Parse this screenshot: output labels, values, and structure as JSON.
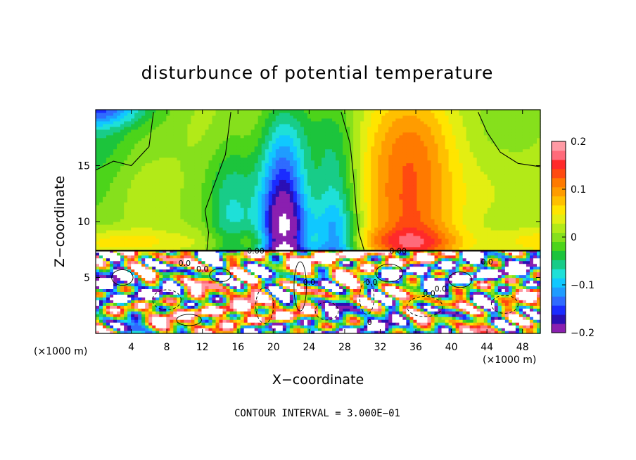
{
  "chart_data": {
    "type": "heatmap",
    "title": "disturbunce of potential temperature",
    "xlabel": "X−coordinate",
    "ylabel": "Z−coordinate",
    "x_unit": "(×1000 m)",
    "x_unit_right": "(×1000 m)",
    "xlim": [
      0,
      50
    ],
    "ylim": [
      0,
      20
    ],
    "xticks": [
      4,
      8,
      12,
      16,
      20,
      24,
      28,
      32,
      36,
      40,
      44,
      48
    ],
    "yticks": [
      5,
      10,
      15
    ],
    "colorbar": {
      "range": [
        -0.2,
        0.2
      ],
      "ticks": [
        {
          "value": 0.2,
          "label": "0.2"
        },
        {
          "value": 0.1,
          "label": "0.1"
        },
        {
          "value": 0,
          "label": "0"
        },
        {
          "value": -0.1,
          "label": "−0.1"
        },
        {
          "value": -0.2,
          "label": "−0.2"
        }
      ],
      "colors": [
        "#8a1fb0",
        "#2a0fb5",
        "#1a2cff",
        "#2f6bff",
        "#1f9cff",
        "#10c8ff",
        "#1ee0d8",
        "#18cc88",
        "#1cc43c",
        "#4cd41a",
        "#86e01c",
        "#b2ea18",
        "#e3ee12",
        "#ffe500",
        "#ffc000",
        "#ff9c00",
        "#ff7a00",
        "#ff4a10",
        "#ff2a2a",
        "#ff6a7a",
        "#ff9aa4"
      ]
    },
    "contour_interval_text": "CONTOUR INTERVAL = 3.000E−01",
    "contour_labels": [
      "0.00",
      "0.00",
      "0.0",
      "0.0",
      "0.0",
      "0.0",
      "0.0",
      "0.0",
      "0.0",
      "0"
    ],
    "interface_height": 7.4,
    "features": [
      {
        "kind": "negative_plume",
        "x_center": 22,
        "x_halfwidth": 8.5,
        "z_range": [
          7.4,
          20
        ],
        "peak": -0.26
      },
      {
        "kind": "positive_plume",
        "x_center": 35,
        "x_halfwidth": 6.5,
        "z_range": [
          7.4,
          20
        ],
        "peak": 0.12
      },
      {
        "kind": "positive_band",
        "z_range": [
          7.4,
          10
        ],
        "peak": 0.05
      },
      {
        "kind": "turbulent_layer",
        "z_range": [
          0,
          7.4
        ],
        "amplitude": 0.35
      }
    ],
    "grid": false
  }
}
